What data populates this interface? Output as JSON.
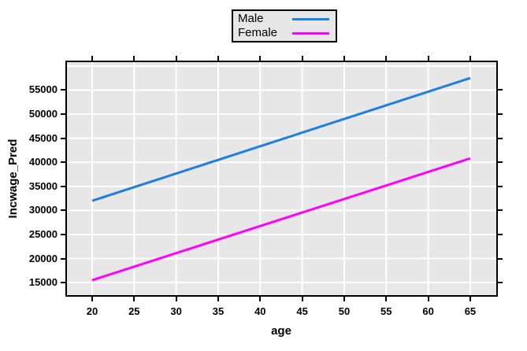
{
  "chart_data": {
    "type": "line",
    "title": "",
    "xlabel": "age",
    "ylabel": "Incwage_Pred",
    "x_ticks": [
      20,
      25,
      30,
      35,
      40,
      45,
      50,
      55,
      60,
      65
    ],
    "x_tick_labels": [
      "20",
      "25",
      "30",
      "35",
      "40",
      "45",
      "50",
      "55",
      "60",
      "65"
    ],
    "y_ticks": [
      15000,
      20000,
      25000,
      30000,
      35000,
      40000,
      45000,
      50000,
      55000
    ],
    "y_tick_labels": [
      "15000",
      "20000",
      "25000",
      "30000",
      "35000",
      "40000",
      "45000",
      "50000",
      "55000"
    ],
    "x_gridlines": [
      20,
      25,
      30,
      35,
      40,
      45,
      50,
      55,
      60,
      65
    ],
    "y_gridlines": [
      15000,
      20000,
      25000,
      30000,
      35000,
      40000,
      45000,
      50000,
      55000,
      60000
    ],
    "xlim": [
      17.0,
      68.1
    ],
    "ylim": [
      12400,
      60800
    ],
    "grid": true,
    "legend_position": "top-center",
    "series": [
      {
        "name": "Male",
        "color": "#1e7fe0",
        "points": [
          [
            20,
            32000
          ],
          [
            65,
            57500
          ]
        ]
      },
      {
        "name": "Female",
        "color": "#ff00ff",
        "points": [
          [
            20,
            15500
          ],
          [
            65,
            40800
          ]
        ]
      }
    ]
  },
  "colors": {
    "plot_background": "#e7e7e7",
    "legend_background": "#e7e7e7",
    "gridline": "#ffffff",
    "axis_border": "#000000",
    "text": "#000000"
  }
}
